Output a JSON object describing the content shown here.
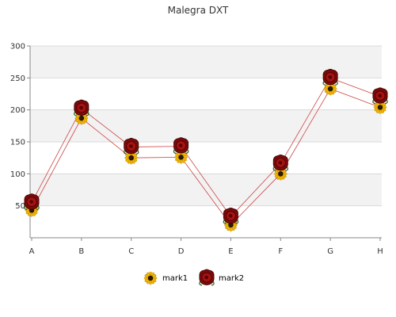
{
  "chart_data": {
    "type": "line",
    "title": "Malegra DXT",
    "xlabel": "",
    "ylabel": "",
    "categories": [
      "A",
      "B",
      "C",
      "D",
      "E",
      "F",
      "G",
      "H"
    ],
    "ylim": [
      0,
      300
    ],
    "yticks": [
      50,
      100,
      150,
      200,
      250,
      300
    ],
    "grid": true,
    "legend_position": "bottom",
    "series": [
      {
        "name": "mark1",
        "values": [
          43,
          187,
          125,
          126,
          20,
          100,
          233,
          204
        ],
        "color": "#cc4444",
        "marker": "sunflower-icon"
      },
      {
        "name": "mark2",
        "values": [
          55,
          202,
          142,
          143,
          33,
          116,
          250,
          221
        ],
        "color": "#cc4444",
        "marker": "rose-icon"
      }
    ],
    "colors": {
      "band": "#f2f2f2",
      "grid": "#d9d9d9",
      "axis": "#888888",
      "line": "#cc4444"
    }
  }
}
